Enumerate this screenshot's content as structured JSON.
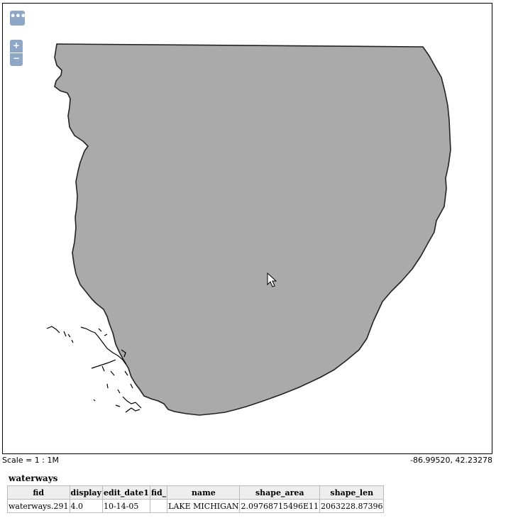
{
  "map": {
    "menu_icon": "ellipsis-icon",
    "zoom_in_label": "+",
    "zoom_out_label": "−",
    "feature_fill": "#aaaaaa",
    "feature_stroke": "#222222"
  },
  "status": {
    "scale": "Scale = 1 : 1M",
    "coordinates": "-86.99520, 42.23278"
  },
  "layer": {
    "title": "waterways",
    "columns": [
      "fid",
      "display",
      "edit_date1",
      "fid_",
      "name",
      "shape_area",
      "shape_len"
    ],
    "rows": [
      [
        "waterways.291",
        "4.0",
        "10-14-05",
        "",
        "LAKE MICHIGAN",
        "2.09768715496E11",
        "2063228.87396"
      ]
    ]
  }
}
